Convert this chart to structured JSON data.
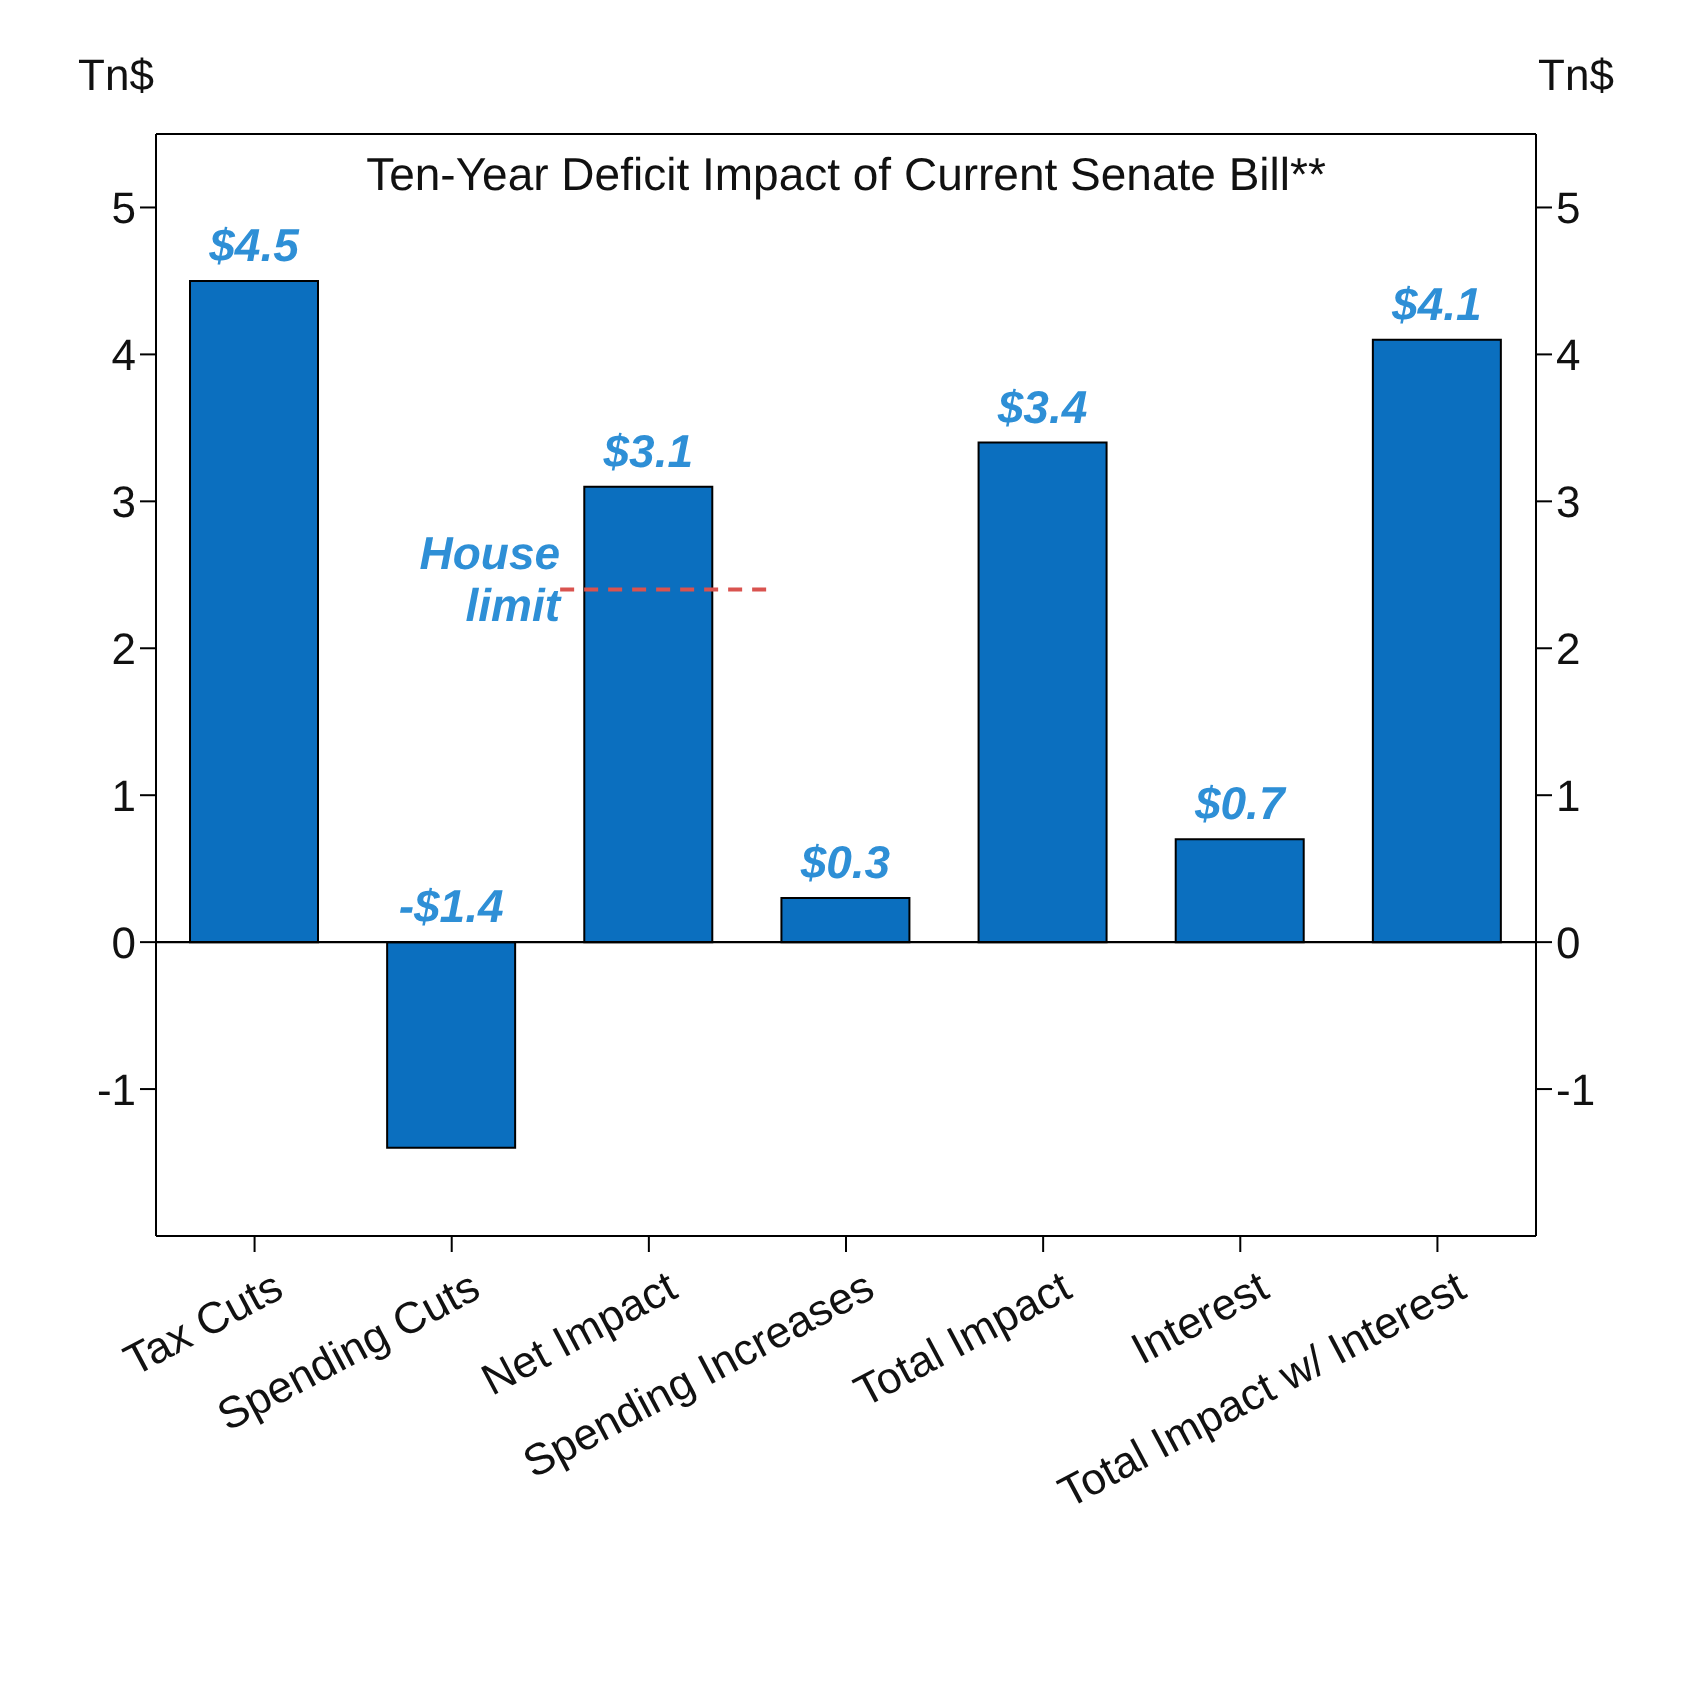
{
  "chart_data": {
    "type": "bar",
    "title": "Ten-Year Deficit Impact of Current Senate Bill**",
    "ylabel": "Tn$",
    "y2label": "Tn$",
    "categories": [
      "Tax Cuts",
      "Spending Cuts",
      "Net Impact",
      "Spending Increases",
      "Total Impact",
      "Interest",
      "Total Impact w/ Interest"
    ],
    "values": [
      4.5,
      -1.4,
      3.1,
      0.3,
      3.4,
      0.7,
      4.1
    ],
    "value_labels": [
      "$4.5",
      "-$1.4",
      "$3.1",
      "$0.3",
      "$3.4",
      "$0.7",
      "$4.1"
    ],
    "color": "#0b6fbf",
    "ylim": [
      -2,
      5.5
    ],
    "yticks": [
      -1,
      0,
      1,
      2,
      3,
      4,
      5
    ],
    "y2lim": [
      -2,
      5.5
    ],
    "y2ticks": [
      -1,
      0,
      1,
      2,
      3,
      4,
      5
    ],
    "ref_lines": [
      {
        "axis": "y",
        "value": 2.4,
        "label": "House limit",
        "color": "#d9534f",
        "line_style": "dashed"
      }
    ]
  }
}
